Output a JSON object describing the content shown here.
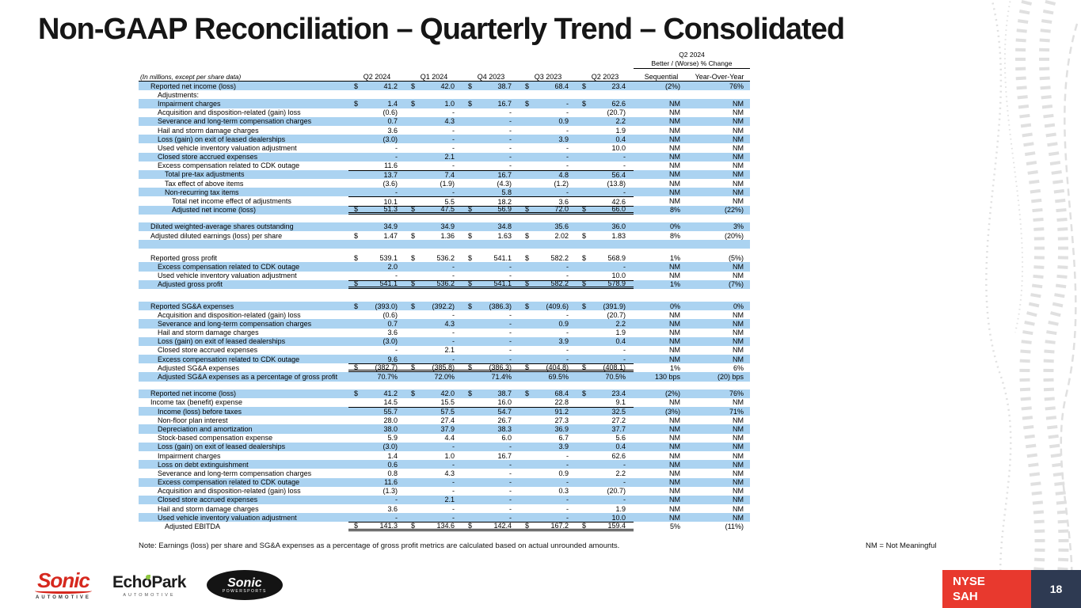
{
  "slide": {
    "title": "Non-GAAP Reconciliation – Quarterly Trend – Consolidated",
    "note": "Note: Earnings (loss) per share and SG&A expenses as a percentage of gross profit metrics are calculated based on actual unrounded amounts.",
    "nm_legend": "NM = Not Meaningful",
    "page_number": "18",
    "ticker": {
      "exchange": "NYSE",
      "symbol": "SAH"
    }
  },
  "logos": {
    "sonic_automotive": {
      "name": "Sonic",
      "sub": "AUTOMOTIVE"
    },
    "echopark": {
      "name": "EchoPark",
      "sub": "AUTOMOTIVE"
    },
    "sonic_powersports": {
      "name": "Sonic",
      "sub": "POWERSPORTS"
    }
  },
  "colors": {
    "row_highlight": "#ABD3F1",
    "accent_red": "#E8392E",
    "navy": "#2E3A52",
    "logo_red": "#D6281E",
    "logo_green": "#8DC63F"
  },
  "table": {
    "units_note": "(In millions, except per share data)",
    "change_header": {
      "period": "Q2 2024",
      "label": "Better / (Worse) % Change",
      "cols": [
        "Sequential",
        "Year-Over-Year"
      ]
    },
    "period_columns": [
      "Q2 2024",
      "Q1 2024",
      "Q4 2023",
      "Q3 2023",
      "Q2 2023"
    ],
    "rows": [
      {
        "label": "Reported net income (loss)",
        "indent": 1,
        "dollar": true,
        "values": [
          "41.2",
          "42.0",
          "38.7",
          "68.4",
          "23.4"
        ],
        "seq": "(2%)",
        "yoy": "76%",
        "shade": true
      },
      {
        "label": "Adjustments:",
        "indent": 2,
        "values": [
          "",
          "",
          "",
          "",
          ""
        ],
        "seq": "",
        "yoy": "",
        "shade": false
      },
      {
        "label": "Impairment charges",
        "indent": 2,
        "dollar": true,
        "values": [
          "1.4",
          "1.0",
          "16.7",
          "-",
          "62.6"
        ],
        "seq": "NM",
        "yoy": "NM",
        "shade": true
      },
      {
        "label": "Acquisition and disposition-related (gain) loss",
        "indent": 2,
        "values": [
          "(0.6)",
          "-",
          "-",
          "-",
          "(20.7)"
        ],
        "seq": "NM",
        "yoy": "NM",
        "shade": false
      },
      {
        "label": "Severance and long-term compensation charges",
        "indent": 2,
        "values": [
          "0.7",
          "4.3",
          "-",
          "0.9",
          "2.2"
        ],
        "seq": "NM",
        "yoy": "NM",
        "shade": true
      },
      {
        "label": "Hail and storm damage charges",
        "indent": 2,
        "values": [
          "3.6",
          "-",
          "-",
          "-",
          "1.9"
        ],
        "seq": "NM",
        "yoy": "NM",
        "shade": false
      },
      {
        "label": "Loss (gain) on exit of leased dealerships",
        "indent": 2,
        "values": [
          "(3.0)",
          "-",
          "-",
          "3.9",
          "0.4"
        ],
        "seq": "NM",
        "yoy": "NM",
        "shade": true
      },
      {
        "label": "Used vehicle inventory valuation adjustment",
        "indent": 2,
        "values": [
          "-",
          "-",
          "-",
          "-",
          "10.0"
        ],
        "seq": "NM",
        "yoy": "NM",
        "shade": false
      },
      {
        "label": "Closed store accrued expenses",
        "indent": 2,
        "values": [
          "-",
          "2.1",
          "-",
          "-",
          "-"
        ],
        "seq": "NM",
        "yoy": "NM",
        "shade": true
      },
      {
        "label": "Excess compensation related to CDK outage",
        "indent": 2,
        "values": [
          "11.6",
          "-",
          "-",
          "-",
          "-"
        ],
        "seq": "NM",
        "yoy": "NM",
        "shade": false
      },
      {
        "label": "Total pre-tax adjustments",
        "indent": 3,
        "values": [
          "13.7",
          "7.4",
          "16.7",
          "4.8",
          "56.4"
        ],
        "seq": "NM",
        "yoy": "NM",
        "shade": true,
        "rule_above": true
      },
      {
        "label": "Tax effect of above items",
        "indent": 3,
        "values": [
          "(3.6)",
          "(1.9)",
          "(4.3)",
          "(1.2)",
          "(13.8)"
        ],
        "seq": "NM",
        "yoy": "NM",
        "shade": false
      },
      {
        "label": "Non-recurring tax items",
        "indent": 3,
        "values": [
          "-",
          "-",
          "5.8",
          "-",
          "-"
        ],
        "seq": "NM",
        "yoy": "NM",
        "shade": true
      },
      {
        "label": "Total net income effect of adjustments",
        "indent": 4,
        "values": [
          "10.1",
          "5.5",
          "18.2",
          "3.6",
          "42.6"
        ],
        "seq": "NM",
        "yoy": "NM",
        "shade": false,
        "rule_above": true
      },
      {
        "label": "Adjusted net income (loss)",
        "indent": 4,
        "dollar": true,
        "values": [
          "51.3",
          "47.5",
          "56.9",
          "72.0",
          "66.0"
        ],
        "seq": "8%",
        "yoy": "(22%)",
        "shade": true,
        "rule_above": true,
        "double_below": true
      },
      {
        "blank": true,
        "h": 10
      },
      {
        "label": "Diluted weighted-average shares outstanding",
        "indent": 1,
        "values": [
          "34.9",
          "34.9",
          "34.8",
          "35.6",
          "36.0"
        ],
        "seq": "0%",
        "yoy": "3%",
        "shade": true
      },
      {
        "label": "Adjusted diluted earnings (loss) per share",
        "indent": 1,
        "dollar": true,
        "values": [
          "1.47",
          "1.36",
          "1.63",
          "2.02",
          "1.83"
        ],
        "seq": "8%",
        "yoy": "(20%)",
        "shade": false
      },
      {
        "blank": true,
        "shade": true,
        "h": 11
      },
      {
        "blank": true,
        "h": 6
      },
      {
        "label": "Reported gross profit",
        "indent": 1,
        "dollar": true,
        "values": [
          "539.1",
          "536.2",
          "541.1",
          "582.2",
          "568.9"
        ],
        "seq": "1%",
        "yoy": "(5%)",
        "shade": false
      },
      {
        "label": "Excess compensation related to CDK outage",
        "indent": 2,
        "values": [
          "2.0",
          "-",
          "-",
          "-",
          "-"
        ],
        "seq": "NM",
        "yoy": "NM",
        "shade": true
      },
      {
        "label": "Used vehicle inventory valuation adjustment",
        "indent": 2,
        "values": [
          "-",
          "-",
          "-",
          "-",
          "10.0"
        ],
        "seq": "NM",
        "yoy": "NM",
        "shade": false
      },
      {
        "label": "Adjusted gross profit",
        "indent": 2,
        "dollar": true,
        "values": [
          "541.1",
          "536.2",
          "541.1",
          "582.2",
          "578.9"
        ],
        "seq": "1%",
        "yoy": "(7%)",
        "shade": true,
        "rule_above": true,
        "double_below": true
      },
      {
        "blank": true,
        "h": 16
      },
      {
        "label": "Reported SG&A expenses",
        "indent": 1,
        "dollar": true,
        "values": [
          "(393.0)",
          "(392.2)",
          "(386.3)",
          "(409.6)",
          "(391.9)"
        ],
        "seq": "0%",
        "yoy": "0%",
        "shade": true
      },
      {
        "label": "Acquisition and disposition-related (gain) loss",
        "indent": 2,
        "values": [
          "(0.6)",
          "-",
          "-",
          "-",
          "(20.7)"
        ],
        "seq": "NM",
        "yoy": "NM",
        "shade": false
      },
      {
        "label": "Severance and long-term compensation charges",
        "indent": 2,
        "values": [
          "0.7",
          "4.3",
          "-",
          "0.9",
          "2.2"
        ],
        "seq": "NM",
        "yoy": "NM",
        "shade": true
      },
      {
        "label": "Hail and storm damage charges",
        "indent": 2,
        "values": [
          "3.6",
          "-",
          "-",
          "-",
          "1.9"
        ],
        "seq": "NM",
        "yoy": "NM",
        "shade": false
      },
      {
        "label": "Loss (gain) on exit of leased dealerships",
        "indent": 2,
        "values": [
          "(3.0)",
          "-",
          "-",
          "3.9",
          "0.4"
        ],
        "seq": "NM",
        "yoy": "NM",
        "shade": true
      },
      {
        "label": "Closed store accrued expenses",
        "indent": 2,
        "values": [
          "-",
          "2.1",
          "-",
          "-",
          "-"
        ],
        "seq": "NM",
        "yoy": "NM",
        "shade": false
      },
      {
        "label": "Excess compensation related to CDK outage",
        "indent": 2,
        "values": [
          "9.6",
          "-",
          "-",
          "-",
          "-"
        ],
        "seq": "NM",
        "yoy": "NM",
        "shade": true
      },
      {
        "label": "Adjusted SG&A expenses",
        "indent": 2,
        "dollar": true,
        "values": [
          "(382.7)",
          "(385.8)",
          "(386.3)",
          "(404.8)",
          "(408.1)"
        ],
        "seq": "1%",
        "yoy": "6%",
        "shade": false,
        "rule_above": true,
        "double_below": true
      },
      {
        "label": "Adjusted SG&A expenses as a percentage of gross profit",
        "indent": 2,
        "values": [
          "70.7%",
          "72.0%",
          "71.4%",
          "69.5%",
          "70.5%"
        ],
        "seq": "130 bps",
        "yoy": "(20) bps",
        "shade": true
      },
      {
        "blank": true,
        "h": 10
      },
      {
        "label": "Reported net income (loss)",
        "indent": 1,
        "dollar": true,
        "values": [
          "41.2",
          "42.0",
          "38.7",
          "68.4",
          "23.4"
        ],
        "seq": "(2%)",
        "yoy": "76%",
        "shade": true
      },
      {
        "label": "Income tax (benefit) expense",
        "indent": 1,
        "values": [
          "14.5",
          "15.5",
          "16.0",
          "22.8",
          "9.1"
        ],
        "seq": "NM",
        "yoy": "NM",
        "shade": false
      },
      {
        "label": "Income (loss) before taxes",
        "indent": 2,
        "values": [
          "55.7",
          "57.5",
          "54.7",
          "91.2",
          "32.5"
        ],
        "seq": "(3%)",
        "yoy": "71%",
        "shade": true,
        "rule_above": true
      },
      {
        "label": "Non-floor plan interest",
        "indent": 2,
        "values": [
          "28.0",
          "27.4",
          "26.7",
          "27.3",
          "27.2"
        ],
        "seq": "NM",
        "yoy": "NM",
        "shade": false
      },
      {
        "label": "Depreciation and amortization",
        "indent": 2,
        "values": [
          "38.0",
          "37.9",
          "38.3",
          "36.9",
          "37.7"
        ],
        "seq": "NM",
        "yoy": "NM",
        "shade": true
      },
      {
        "label": "Stock-based compensation expense",
        "indent": 2,
        "values": [
          "5.9",
          "4.4",
          "6.0",
          "6.7",
          "5.6"
        ],
        "seq": "NM",
        "yoy": "NM",
        "shade": false
      },
      {
        "label": "Loss (gain) on exit of leased dealerships",
        "indent": 2,
        "values": [
          "(3.0)",
          "-",
          "-",
          "3.9",
          "0.4"
        ],
        "seq": "NM",
        "yoy": "NM",
        "shade": true
      },
      {
        "label": "Impairment charges",
        "indent": 2,
        "values": [
          "1.4",
          "1.0",
          "16.7",
          "-",
          "62.6"
        ],
        "seq": "NM",
        "yoy": "NM",
        "shade": false
      },
      {
        "label": "Loss on debt extinguishment",
        "indent": 2,
        "values": [
          "0.6",
          "-",
          "-",
          "-",
          "-"
        ],
        "seq": "NM",
        "yoy": "NM",
        "shade": true
      },
      {
        "label": "Severance and long-term compensation charges",
        "indent": 2,
        "values": [
          "0.8",
          "4.3",
          "-",
          "0.9",
          "2.2"
        ],
        "seq": "NM",
        "yoy": "NM",
        "shade": false
      },
      {
        "label": "Excess compensation related to CDK outage",
        "indent": 2,
        "values": [
          "11.6",
          "-",
          "-",
          "-",
          "-"
        ],
        "seq": "NM",
        "yoy": "NM",
        "shade": true
      },
      {
        "label": "Acquisition and disposition-related (gain) loss",
        "indent": 2,
        "values": [
          "(1.3)",
          "-",
          "-",
          "0.3",
          "(20.7)"
        ],
        "seq": "NM",
        "yoy": "NM",
        "shade": false
      },
      {
        "label": "Closed store accrued expenses",
        "indent": 2,
        "values": [
          "-",
          "2.1",
          "-",
          "-",
          "-"
        ],
        "seq": "NM",
        "yoy": "NM",
        "shade": true
      },
      {
        "label": "Hail and storm damage charges",
        "indent": 2,
        "values": [
          "3.6",
          "-",
          "-",
          "-",
          "1.9"
        ],
        "seq": "NM",
        "yoy": "NM",
        "shade": false
      },
      {
        "label": "Used vehicle inventory valuation adjustment",
        "indent": 2,
        "values": [
          "-",
          "-",
          "-",
          "-",
          "10.0"
        ],
        "seq": "NM",
        "yoy": "NM",
        "shade": true
      },
      {
        "label": "Adjusted EBITDA",
        "indent": 3,
        "dollar": true,
        "values": [
          "141.3",
          "134.6",
          "142.4",
          "167.2",
          "159.4"
        ],
        "seq": "5%",
        "yoy": "(11%)",
        "shade": false,
        "rule_above": true,
        "double_below": true
      }
    ]
  }
}
